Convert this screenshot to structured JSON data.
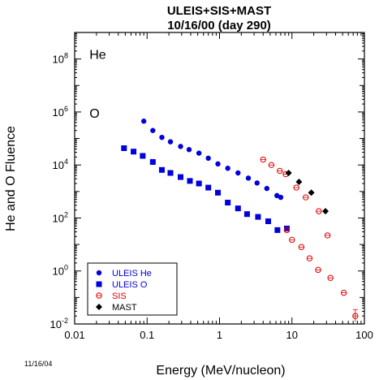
{
  "chart_data": {
    "type": "scatter",
    "title": "ULEIS+SIS+MAST",
    "subtitle": "10/16/00 (day 290)",
    "xlabel": "Energy (MeV/nucleon)",
    "ylabel": "He and O Fluence",
    "x_scale": "log",
    "y_scale": "log",
    "xlim": [
      0.01,
      100
    ],
    "ylim": [
      0.01,
      1000000000
    ],
    "x_ticks": [
      {
        "value": 0.01,
        "label": "0.01"
      },
      {
        "value": 0.1,
        "label": "0.1"
      },
      {
        "value": 1,
        "label": "1"
      },
      {
        "value": 10,
        "label": "10"
      },
      {
        "value": 100,
        "label": "100"
      }
    ],
    "y_ticks": [
      {
        "value": 0.01,
        "base": "10",
        "exp": "-2"
      },
      {
        "value": 1,
        "base": "10",
        "exp": "0"
      },
      {
        "value": 100,
        "base": "10",
        "exp": "2"
      },
      {
        "value": 10000,
        "base": "10",
        "exp": "4"
      },
      {
        "value": 1000000,
        "base": "10",
        "exp": "6"
      },
      {
        "value": 100000000,
        "base": "10",
        "exp": "8"
      }
    ],
    "annotations": [
      {
        "text": "He",
        "x": 0.016,
        "y": 100000000
      },
      {
        "text": "O",
        "x": 0.016,
        "y": 600000
      }
    ],
    "legend_position": "bottom-left",
    "grid": false,
    "series": [
      {
        "name": "ULEIS He",
        "marker": "circle-filled",
        "color": "#0000dd",
        "text_color": "#0000cc",
        "points": [
          [
            0.09,
            450000
          ],
          [
            0.12,
            200000
          ],
          [
            0.16,
            110000
          ],
          [
            0.21,
            75000
          ],
          [
            0.29,
            50000
          ],
          [
            0.38,
            38000
          ],
          [
            0.52,
            28000
          ],
          [
            0.7,
            18000
          ],
          [
            0.95,
            11000
          ],
          [
            1.3,
            7500
          ],
          [
            1.8,
            5000
          ],
          [
            2.5,
            3200
          ],
          [
            3.3,
            2100
          ],
          [
            4.5,
            1300
          ],
          [
            6.2,
            700
          ],
          [
            7.0,
            600
          ]
        ]
      },
      {
        "name": "ULEIS O",
        "marker": "square-filled",
        "color": "#0000dd",
        "text_color": "#0000cc",
        "points": [
          [
            0.048,
            43000
          ],
          [
            0.065,
            32000
          ],
          [
            0.087,
            22000
          ],
          [
            0.12,
            13000
          ],
          [
            0.16,
            6500
          ],
          [
            0.21,
            5000
          ],
          [
            0.29,
            3500
          ],
          [
            0.39,
            2500
          ],
          [
            0.52,
            2000
          ],
          [
            0.7,
            1400
          ],
          [
            0.95,
            900
          ],
          [
            1.3,
            380
          ],
          [
            1.8,
            230
          ],
          [
            2.4,
            140
          ],
          [
            3.4,
            110
          ],
          [
            4.7,
            75
          ],
          [
            6.3,
            35
          ],
          [
            8.5,
            40
          ]
        ]
      },
      {
        "name": "SIS",
        "marker": "circle-open",
        "color": "#dd0000",
        "text_color": "#dd0000",
        "points": [
          [
            4.0,
            16000,
            null
          ],
          [
            5.2,
            10000,
            null
          ],
          [
            6.8,
            6000,
            null
          ],
          [
            8.2,
            4500,
            null
          ],
          [
            11.5,
            1400,
            null
          ],
          [
            15.5,
            600,
            null
          ],
          [
            23.5,
            180,
            null
          ],
          [
            31,
            22,
            null
          ],
          [
            8.5,
            35,
            null
          ],
          [
            10,
            15,
            null
          ],
          [
            13.5,
            8,
            null
          ],
          [
            17.5,
            3,
            null
          ],
          [
            23,
            1.1,
            null
          ],
          [
            34,
            0.55,
            null
          ],
          [
            52,
            0.15,
            null
          ],
          [
            75,
            0.02,
            [
              0.012,
              0.035
            ]
          ]
        ]
      },
      {
        "name": "MAST",
        "marker": "diamond-filled",
        "color": "#000000",
        "text_color": "#000000",
        "points": [
          [
            9.0,
            5000
          ],
          [
            12.5,
            2300
          ],
          [
            18.5,
            900
          ],
          [
            29,
            180
          ]
        ]
      }
    ]
  },
  "footer": {
    "date_stamp": "11/16/04"
  }
}
